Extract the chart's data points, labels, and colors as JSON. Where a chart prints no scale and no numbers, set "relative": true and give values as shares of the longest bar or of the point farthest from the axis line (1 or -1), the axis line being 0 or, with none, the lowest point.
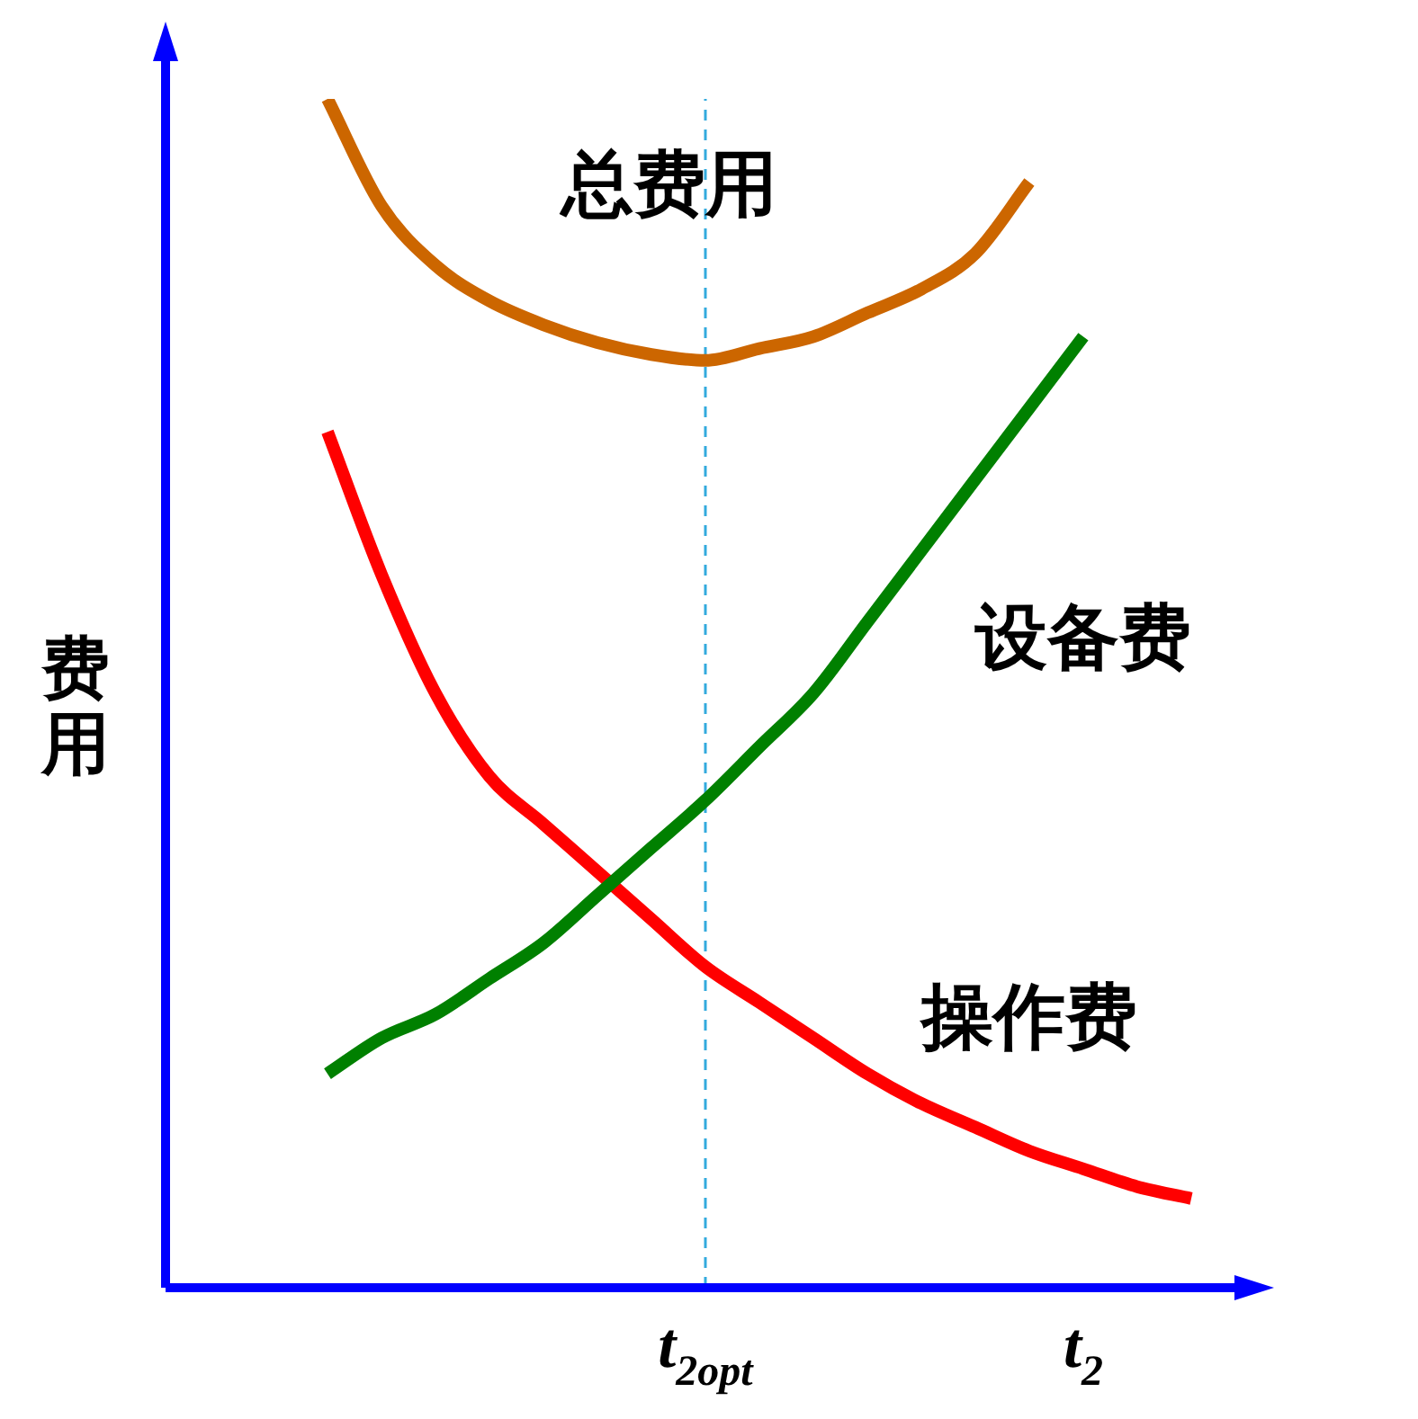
{
  "chart_data": {
    "type": "line",
    "relative": true,
    "ylabel": "费用",
    "legend": false,
    "marker": "none",
    "line_style": "solid",
    "categories": [
      null,
      null,
      null,
      null,
      null,
      null,
      null,
      null,
      null,
      null,
      "t$_{2opt}$",
      null,
      null,
      null,
      null,
      null,
      null,
      "t$_{2}$",
      null,
      null,
      null
    ],
    "ref_lines": [
      {
        "axis": "x",
        "value": "t$_{2opt}$",
        "color": "#33aadd",
        "line_style": "dashed"
      }
    ],
    "series": [
      {
        "name": "总费用",
        "color": "#cc6600",
        "values": [
          null,
          null,
          null,
          1,
          0.91,
          0.86,
          0.83,
          0.81,
          0.795,
          0.785,
          0.78,
          0.79,
          0.8,
          0.82,
          0.84,
          0.87,
          0.93,
          null,
          null,
          null,
          null
        ]
      },
      {
        "name": "设备费",
        "color": "#008000",
        "values": [
          null,
          null,
          null,
          0.18,
          0.21,
          0.23,
          0.26,
          0.29,
          0.33,
          0.37,
          0.41,
          0.455,
          0.5,
          0.56,
          0.62,
          0.68,
          0.74,
          0.8,
          null,
          null,
          null
        ]
      },
      {
        "name": "操作费",
        "color": "#ff0000",
        "values": [
          null,
          null,
          null,
          0.72,
          0.6,
          0.5,
          0.43,
          0.39,
          0.35,
          0.31,
          0.27,
          0.24,
          0.21,
          0.18,
          0.155,
          0.135,
          0.115,
          0.1,
          0.085,
          0.075,
          null
        ]
      }
    ]
  }
}
